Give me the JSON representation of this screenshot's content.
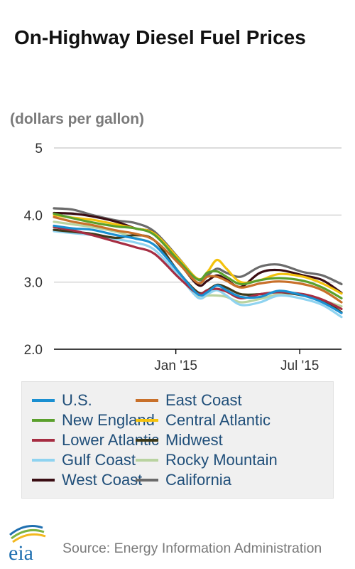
{
  "page": {
    "title": "On-Highway Diesel Fuel Prices",
    "subtitle": "(dollars per gallon)",
    "source": "Source: Energy Information Administration",
    "logo_text": "eia"
  },
  "colors": {
    "grid": "#c8c8c8",
    "axis": "#000000",
    "tick_text": "#333333",
    "logo_blue": "#1f6fb0",
    "logo_green": "#7cb342",
    "logo_yellow": "#f3b81f"
  },
  "chart_data": {
    "type": "line",
    "title": "On-Highway Diesel Fuel Prices",
    "ylabel": "(dollars per gallon)",
    "xlabel": "",
    "x_start": "2014-07-07",
    "x_end": "2015-08-31",
    "x_ticks": [
      {
        "date": "2015-01-01",
        "label": "Jan '15"
      },
      {
        "date": "2015-07-01",
        "label": "Jul '15"
      }
    ],
    "y_ticks": [
      {
        "value": 2.0,
        "label": "2.0"
      },
      {
        "value": 3.0,
        "label": "3.0"
      },
      {
        "value": 4.0,
        "label": "4.0"
      },
      {
        "value": 5.0,
        "label": "5"
      }
    ],
    "ylim": [
      2.0,
      5.0
    ],
    "grid": true,
    "legend_position": "bottom",
    "x": [
      "2014-07-07",
      "2014-08-04",
      "2014-09-01",
      "2014-10-06",
      "2014-11-03",
      "2014-12-01",
      "2015-01-05",
      "2015-02-02",
      "2015-02-16",
      "2015-03-02",
      "2015-03-16",
      "2015-04-06",
      "2015-05-04",
      "2015-06-01",
      "2015-07-06",
      "2015-08-03",
      "2015-08-31"
    ],
    "series": [
      {
        "name": "U.S.",
        "color": "#1a8fd1",
        "values": [
          3.84,
          3.8,
          3.78,
          3.7,
          3.65,
          3.55,
          3.15,
          2.82,
          2.85,
          2.95,
          2.88,
          2.78,
          2.78,
          2.87,
          2.8,
          2.7,
          2.54
        ]
      },
      {
        "name": "East Coast",
        "color": "#c8702a",
        "values": [
          3.97,
          3.9,
          3.85,
          3.77,
          3.72,
          3.62,
          3.28,
          2.99,
          3.08,
          3.08,
          3.02,
          2.92,
          2.98,
          3.01,
          2.97,
          2.88,
          2.7
        ]
      },
      {
        "name": "New England",
        "color": "#5aa02c",
        "values": [
          4.02,
          3.95,
          3.89,
          3.83,
          3.8,
          3.7,
          3.32,
          3.04,
          3.14,
          3.16,
          3.08,
          2.97,
          3.03,
          3.06,
          3.02,
          2.92,
          2.76
        ]
      },
      {
        "name": "Central Atlantic",
        "color": "#f4c20d",
        "values": [
          4.0,
          3.96,
          3.93,
          3.86,
          3.8,
          3.72,
          3.35,
          3.05,
          3.15,
          3.33,
          3.2,
          3.0,
          3.03,
          3.12,
          3.08,
          2.98,
          2.83
        ]
      },
      {
        "name": "Lower Atlantic",
        "color": "#a62d42",
        "values": [
          3.82,
          3.77,
          3.7,
          3.6,
          3.52,
          3.42,
          3.07,
          2.83,
          2.88,
          2.9,
          2.86,
          2.76,
          2.82,
          2.85,
          2.82,
          2.74,
          2.6
        ]
      },
      {
        "name": "Midwest",
        "color": "#3e3a1a",
        "values": [
          3.78,
          3.75,
          3.72,
          3.66,
          3.7,
          3.62,
          3.15,
          2.85,
          2.88,
          2.96,
          2.92,
          2.82,
          2.82,
          2.85,
          2.8,
          2.73,
          2.55
        ]
      },
      {
        "name": "Gulf Coast",
        "color": "#8fd3f0",
        "values": [
          3.76,
          3.73,
          3.7,
          3.64,
          3.59,
          3.48,
          3.1,
          2.77,
          2.82,
          2.88,
          2.8,
          2.66,
          2.7,
          2.8,
          2.75,
          2.66,
          2.48
        ]
      },
      {
        "name": "Rocky Mountain",
        "color": "#b9d3a0",
        "values": [
          3.9,
          3.86,
          3.82,
          3.75,
          3.66,
          3.55,
          3.16,
          2.78,
          2.8,
          2.8,
          2.78,
          2.7,
          2.75,
          2.82,
          2.82,
          2.73,
          2.64
        ]
      },
      {
        "name": "West Coast",
        "color": "#3a0d13",
        "values": [
          4.03,
          4.02,
          3.98,
          3.9,
          3.8,
          3.72,
          3.3,
          2.96,
          3.02,
          3.1,
          3.04,
          2.93,
          3.14,
          3.18,
          3.1,
          3.03,
          2.84
        ]
      },
      {
        "name": "California",
        "color": "#6b6b6b",
        "values": [
          4.1,
          4.08,
          4.0,
          3.92,
          3.88,
          3.75,
          3.36,
          3.04,
          3.1,
          3.2,
          3.14,
          3.08,
          3.23,
          3.26,
          3.15,
          3.1,
          2.97
        ]
      }
    ]
  }
}
